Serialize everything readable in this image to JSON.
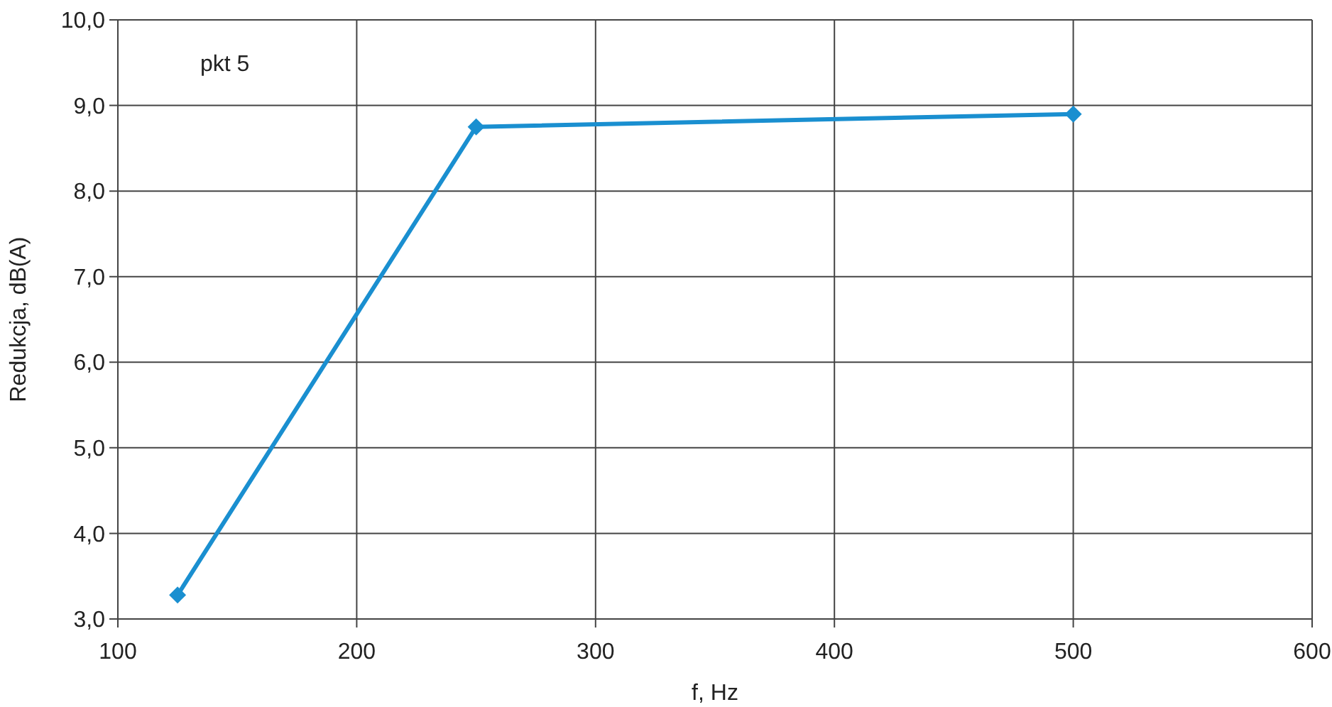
{
  "chart_data": {
    "type": "line",
    "xlabel": "f, Hz",
    "ylabel": "Redukcja, dB(A)",
    "annotations": [
      "pkt 5"
    ],
    "x": [
      125,
      250,
      500
    ],
    "series": [
      {
        "color": "#1a8fd0",
        "values": [
          3.28,
          8.75,
          8.9
        ]
      }
    ],
    "xlim": [
      100,
      600
    ],
    "xticks": [
      100,
      200,
      300,
      400,
      500,
      600
    ],
    "ylim": [
      3,
      10
    ],
    "yticks": [
      {
        "value": 3,
        "label": "3,0"
      },
      {
        "value": 4,
        "label": "4,0"
      },
      {
        "value": 5,
        "label": "5,0"
      },
      {
        "value": 6,
        "label": "6,0"
      },
      {
        "value": 7,
        "label": "7,0"
      },
      {
        "value": 8,
        "label": "8,0"
      },
      {
        "value": 9,
        "label": "9,0"
      },
      {
        "value": 10,
        "label": "10,0"
      }
    ],
    "grid": true,
    "marker": "diamond",
    "line_style": "solid"
  }
}
